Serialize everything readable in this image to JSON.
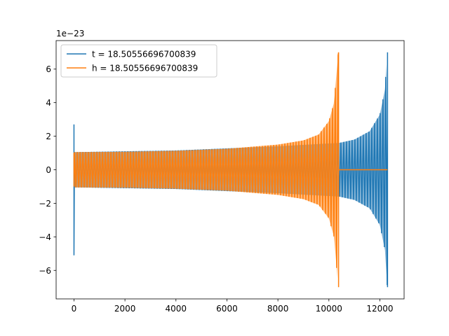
{
  "chart_data": {
    "type": "line",
    "title": "",
    "xlabel": "",
    "ylabel": "",
    "y_scale_label": "1e−23",
    "xlim": [
      -700,
      12950
    ],
    "ylim": [
      -7.7,
      7.7
    ],
    "x_ticks": [
      0,
      2000,
      4000,
      6000,
      8000,
      10000,
      12000
    ],
    "x_tick_labels": [
      "0",
      "2000",
      "4000",
      "6000",
      "8000",
      "10000",
      "12000"
    ],
    "y_ticks": [
      -6,
      -4,
      -2,
      0,
      2,
      4,
      6
    ],
    "y_tick_labels": [
      "−6",
      "−4",
      "−2",
      "0",
      "2",
      "4",
      "6"
    ],
    "grid": false,
    "legend_position": "top-left",
    "series": [
      {
        "name": "t = 18.50556696700839",
        "color": "#1f77b4",
        "shape": "chirp",
        "start_x": 0,
        "end_x": 12300,
        "start_spike": [
          -5.1,
          2.7
        ],
        "start_amplitude": 1.05,
        "amplitude_at_x": [
          [
            0,
            1.05
          ],
          [
            4000,
            1.15
          ],
          [
            8000,
            1.4
          ],
          [
            10400,
            1.6
          ],
          [
            11000,
            1.8
          ],
          [
            11600,
            2.3
          ],
          [
            12000,
            3.3
          ],
          [
            12200,
            4.8
          ],
          [
            12290,
            7.0
          ]
        ],
        "peak": [
          -7.0,
          7.0
        ]
      },
      {
        "name": "h = 18.50556696700839",
        "color": "#ff7f0e",
        "shape": "chirp",
        "start_x": 0,
        "end_x": 10380,
        "start_spike": [
          -1.0,
          1.0
        ],
        "start_amplitude": 1.05,
        "amplitude_at_x": [
          [
            0,
            1.05
          ],
          [
            2000,
            1.07
          ],
          [
            4000,
            1.13
          ],
          [
            6000,
            1.25
          ],
          [
            8000,
            1.5
          ],
          [
            9000,
            1.75
          ],
          [
            9600,
            2.1
          ],
          [
            10000,
            2.9
          ],
          [
            10200,
            4.0
          ],
          [
            10370,
            7.0
          ]
        ],
        "peak": [
          -7.0,
          7.0
        ],
        "tail_x": [
          10380,
          12300
        ],
        "tail_value": 0
      }
    ]
  }
}
